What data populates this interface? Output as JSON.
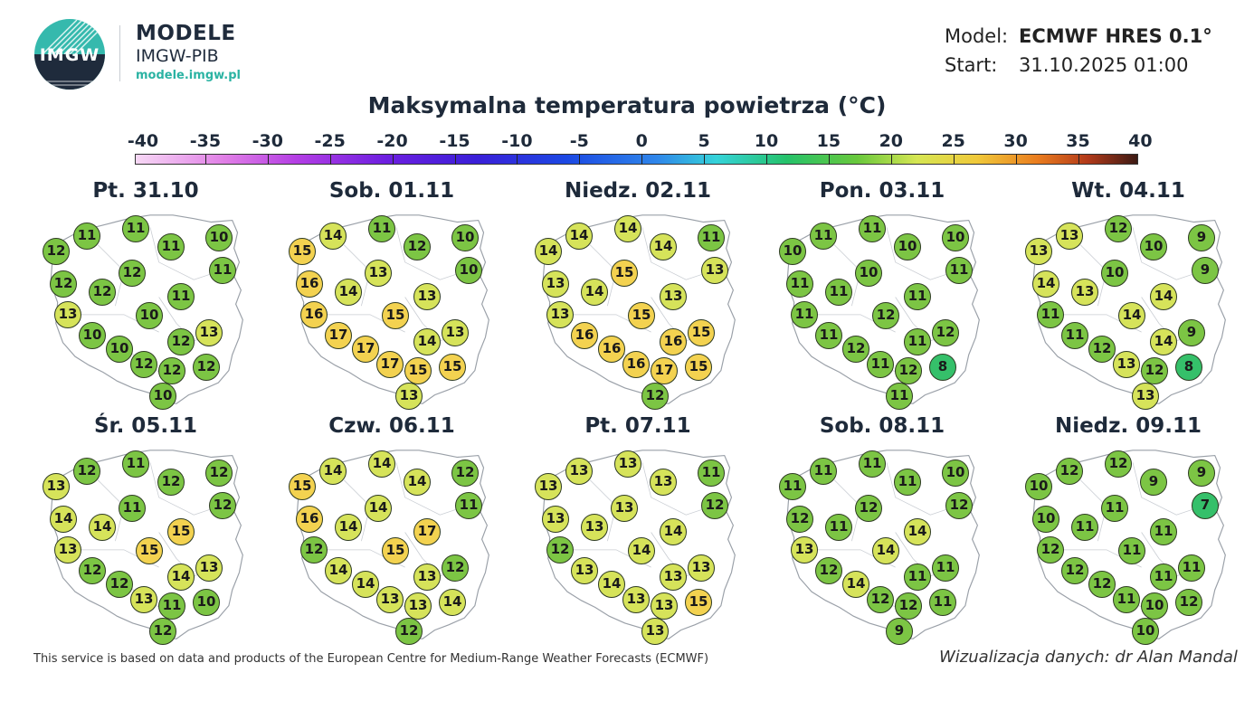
{
  "header": {
    "logo_text": "IMGW",
    "brand_title": "MODELE",
    "brand_subtitle": "IMGW-PIB",
    "brand_url": "modele.imgw.pl",
    "model_label": "Model:",
    "model_value": "ECMWF HRES 0.1°",
    "start_label": "Start:",
    "start_value": "31.10.2025 01:00",
    "title": "Maksymalna temperatura powietrza (°C)"
  },
  "scale": {
    "ticks": [
      "-40",
      "-35",
      "-30",
      "-25",
      "-20",
      "-15",
      "-10",
      "-5",
      "0",
      "5",
      "10",
      "15",
      "20",
      "25",
      "30",
      "35",
      "40"
    ],
    "colors": {
      "cool": "#35c06a",
      "mid": "#7cc544",
      "warm": "#d6e35a",
      "hot": "#f3d250"
    }
  },
  "maps": [
    {
      "date": "Pt. 31.10",
      "values": [
        11,
        11,
        12,
        11,
        10,
        11,
        12,
        12,
        12,
        11,
        13,
        10,
        10,
        12,
        13,
        10,
        12,
        12,
        12,
        10
      ]
    },
    {
      "date": "Sob. 01.11",
      "values": [
        14,
        11,
        15,
        12,
        10,
        10,
        16,
        14,
        13,
        13,
        16,
        15,
        17,
        14,
        13,
        17,
        17,
        15,
        15,
        13
      ]
    },
    {
      "date": "Niedz. 02.11",
      "values": [
        14,
        14,
        14,
        14,
        11,
        13,
        13,
        14,
        15,
        13,
        13,
        15,
        16,
        16,
        15,
        16,
        16,
        17,
        15,
        12
      ]
    },
    {
      "date": "Pon. 03.11",
      "values": [
        11,
        11,
        10,
        10,
        10,
        11,
        11,
        11,
        10,
        11,
        11,
        12,
        11,
        11,
        12,
        12,
        11,
        12,
        8,
        11
      ]
    },
    {
      "date": "Wt. 04.11",
      "values": [
        13,
        12,
        13,
        10,
        9,
        9,
        14,
        13,
        10,
        14,
        11,
        14,
        11,
        14,
        9,
        12,
        13,
        12,
        8,
        13
      ]
    },
    {
      "date": "Śr. 05.11",
      "values": [
        12,
        11,
        13,
        12,
        12,
        12,
        14,
        14,
        11,
        15,
        13,
        15,
        12,
        14,
        13,
        12,
        13,
        11,
        10,
        12
      ]
    },
    {
      "date": "Czw. 06.11",
      "values": [
        14,
        14,
        15,
        14,
        12,
        11,
        16,
        14,
        14,
        17,
        12,
        15,
        14,
        13,
        12,
        14,
        13,
        13,
        14,
        12
      ]
    },
    {
      "date": "Pt. 07.11",
      "values": [
        13,
        13,
        13,
        13,
        11,
        12,
        13,
        13,
        13,
        14,
        12,
        14,
        13,
        13,
        13,
        14,
        13,
        13,
        15,
        13
      ]
    },
    {
      "date": "Sob. 08.11",
      "values": [
        11,
        11,
        11,
        11,
        10,
        12,
        12,
        11,
        12,
        14,
        13,
        14,
        12,
        11,
        11,
        14,
        12,
        12,
        11,
        9
      ]
    },
    {
      "date": "Niedz. 09.11",
      "values": [
        12,
        12,
        10,
        9,
        9,
        7,
        10,
        11,
        11,
        11,
        12,
        11,
        12,
        11,
        11,
        12,
        11,
        10,
        12,
        10
      ]
    }
  ],
  "footer": {
    "left": "This service is based on data and products of the European Centre for Medium-Range Weather Forecasts (ECMWF)",
    "right": "Wizualizacja danych: dr Alan Mandal"
  }
}
